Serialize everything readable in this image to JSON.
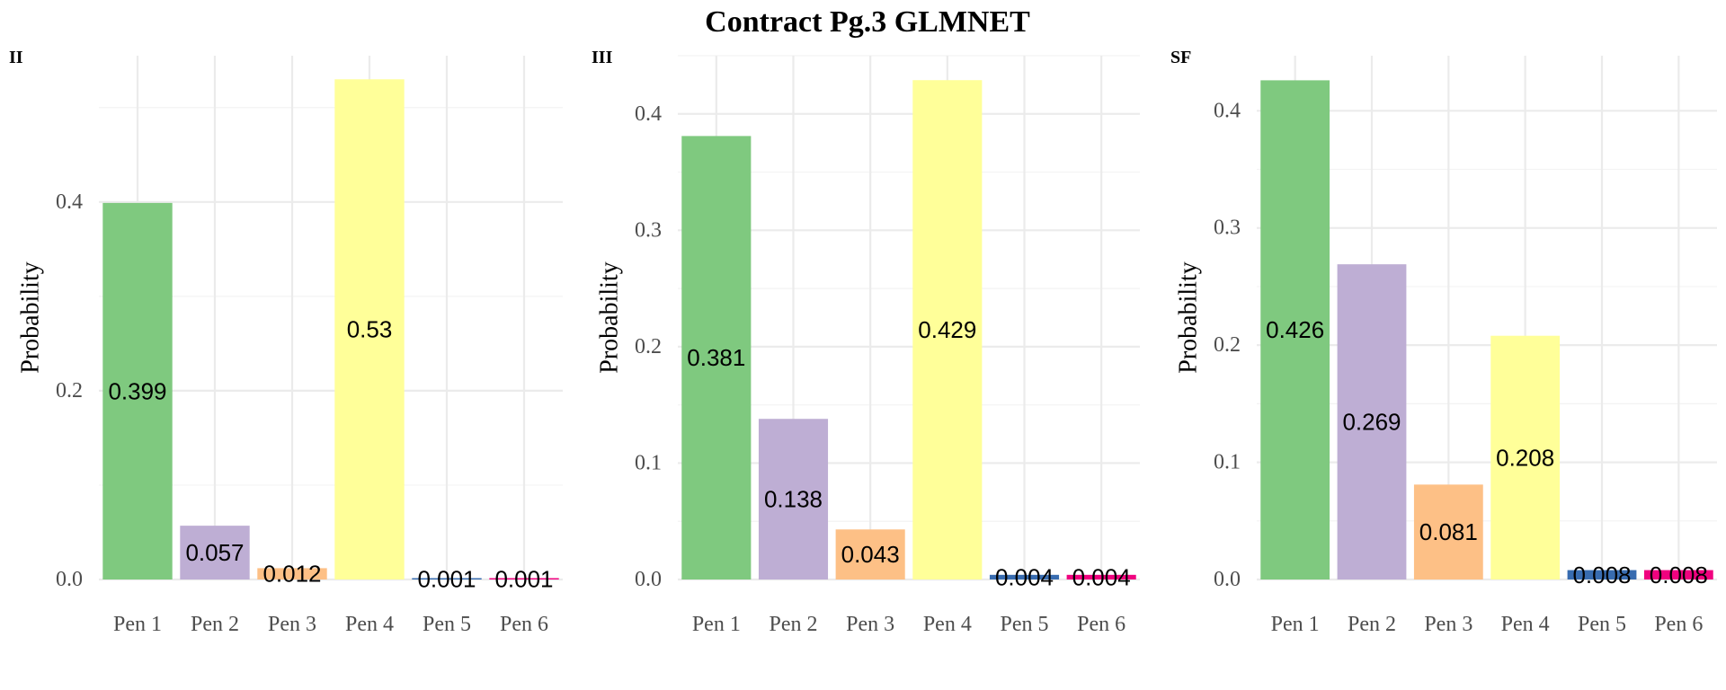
{
  "title": "Contract Pg.3 GLMNET",
  "chart_data": {
    "type": "bar",
    "title": "Contract Pg.3 GLMNET",
    "ylabel": "Probability",
    "xlabel": "",
    "categories": [
      "Pen 1",
      "Pen 2",
      "Pen 3",
      "Pen 4",
      "Pen 5",
      "Pen 6"
    ],
    "colors": [
      "#7FC97F",
      "#BEAED4",
      "#FDC086",
      "#FFFF99",
      "#386CB0",
      "#F0027F"
    ],
    "grid": true,
    "legend": "none",
    "panels": [
      {
        "name": "II",
        "values": [
          0.399,
          0.057,
          0.012,
          0.53,
          0.001,
          0.001
        ],
        "labels": [
          "0.399",
          "0.057",
          "0.012",
          "0.53",
          "0.001",
          "0.001"
        ],
        "ylim": [
          0,
          0.555
        ],
        "yticks": [
          0.0,
          0.2,
          0.4
        ],
        "ytick_labels": [
          "0.0",
          "0.2",
          "0.4"
        ]
      },
      {
        "name": "III",
        "values": [
          0.381,
          0.138,
          0.043,
          0.429,
          0.004,
          0.004
        ],
        "labels": [
          "0.381",
          "0.138",
          "0.043",
          "0.429",
          "0.004",
          "0.004"
        ],
        "ylim": [
          0,
          0.45
        ],
        "yticks": [
          0.0,
          0.1,
          0.2,
          0.3,
          0.4
        ],
        "ytick_labels": [
          "0.0",
          "0.1",
          "0.2",
          "0.3",
          "0.4"
        ]
      },
      {
        "name": "SF",
        "values": [
          0.426,
          0.269,
          0.081,
          0.208,
          0.008,
          0.008
        ],
        "labels": [
          "0.426",
          "0.269",
          "0.081",
          "0.208",
          "0.008",
          "0.008"
        ],
        "ylim": [
          0,
          0.447
        ],
        "yticks": [
          0.0,
          0.1,
          0.2,
          0.3,
          0.4
        ],
        "ytick_labels": [
          "0.0",
          "0.1",
          "0.2",
          "0.3",
          "0.4"
        ]
      }
    ]
  }
}
